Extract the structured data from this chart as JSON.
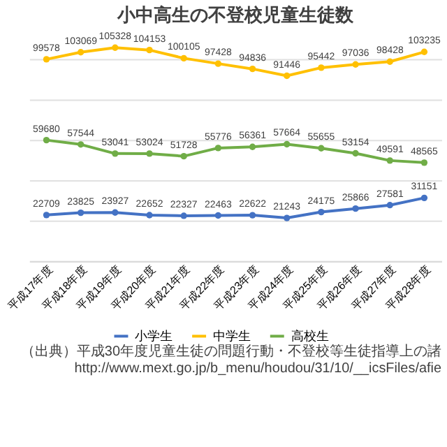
{
  "chart_data": {
    "type": "line",
    "title": "小中高生の不登校児童生徒数",
    "categories": [
      "平成17年度",
      "平成18年度",
      "平成19年度",
      "平成20年度",
      "平成21年度",
      "平成22年度",
      "平成23年度",
      "平成24年度",
      "平成25年度",
      "平成26年度",
      "平成27年度",
      "平成28年度"
    ],
    "series": [
      {
        "name": "小学生",
        "color": "#4472c4",
        "values": [
          22709,
          23825,
          23927,
          22652,
          22327,
          22463,
          22622,
          21243,
          24175,
          25866,
          27581,
          31151
        ]
      },
      {
        "name": "中学生",
        "color": "#ffc000",
        "values": [
          99578,
          103069,
          105328,
          104153,
          100105,
          97428,
          94836,
          91446,
          95442,
          97036,
          98428,
          103235
        ]
      },
      {
        "name": "高校生",
        "color": "#70ad47",
        "values": [
          59680,
          57544,
          53041,
          53024,
          51728,
          55776,
          56361,
          57664,
          55655,
          53154,
          49591,
          48565
        ]
      }
    ],
    "tick_labels": "x",
    "grid": "y",
    "legend": "bottom",
    "marker": "circle",
    "line_style": "solid",
    "data_labels": true,
    "annotations": [
      "（出典）平成30年度児童生徒の問題行動・不登校等生徒指導上の諸",
      "http://www.mext.go.jp/b_menu/houdou/31/10/__icsFiles/afie"
    ]
  }
}
